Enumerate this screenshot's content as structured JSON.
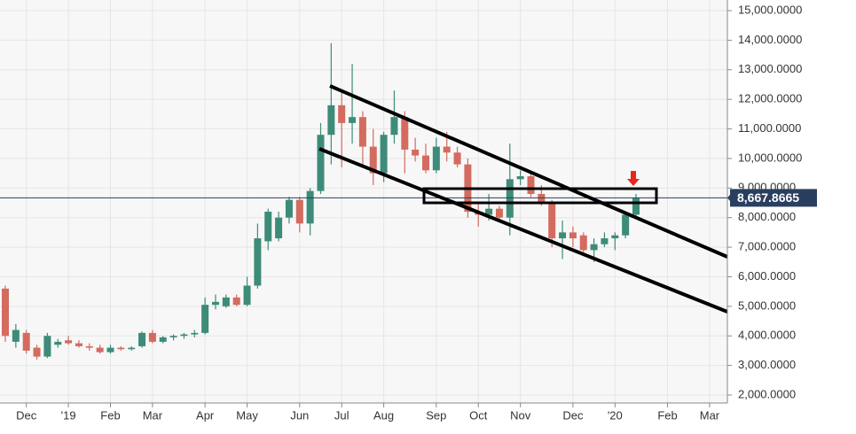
{
  "chart_data": {
    "type": "candlestick",
    "categories": [
      null,
      null,
      "Dec",
      null,
      null,
      null,
      "'19",
      null,
      null,
      null,
      "Feb",
      null,
      null,
      null,
      "Mar",
      null,
      null,
      null,
      null,
      "Apr",
      null,
      null,
      null,
      "May",
      null,
      null,
      null,
      null,
      "Jun",
      null,
      null,
      null,
      "Jul",
      null,
      null,
      null,
      "Aug",
      null,
      null,
      null,
      null,
      "Sep",
      null,
      null,
      null,
      "Oct",
      null,
      null,
      null,
      "Nov",
      null,
      null,
      null,
      null,
      "Dec",
      null,
      null,
      null,
      "'20",
      null,
      null,
      null,
      null,
      "Feb",
      null,
      null,
      null,
      "Mar"
    ],
    "open": [
      5600,
      3800,
      4100,
      3600,
      3300,
      3700,
      3850,
      3750,
      3650,
      3600,
      3450,
      3600,
      3550,
      3650,
      4100,
      3800,
      3950,
      4000,
      4050,
      4100,
      5050,
      5000,
      5300,
      5050,
      5700,
      7200,
      7300,
      8000,
      8600,
      7800,
      8900,
      10800,
      11800,
      11200,
      11400,
      10400,
      9500,
      10800,
      11400,
      10300,
      10100,
      9600,
      10400,
      10200,
      9800,
      8200,
      8100,
      8300,
      8000,
      9300,
      9400,
      8800,
      8500,
      7300,
      7500,
      7400,
      6900,
      7100,
      7300,
      7400,
      8100,
      null,
      null,
      null,
      null,
      null,
      null,
      null
    ],
    "high": [
      5700,
      4400,
      4200,
      3700,
      4100,
      3900,
      4000,
      3850,
      3750,
      3700,
      3700,
      3650,
      3650,
      4150,
      4200,
      4000,
      4050,
      4100,
      4200,
      5300,
      5400,
      5400,
      5400,
      6000,
      7800,
      8300,
      8200,
      8700,
      8700,
      9000,
      11200,
      13900,
      12300,
      13200,
      11600,
      11000,
      10900,
      12300,
      11600,
      10700,
      10500,
      10700,
      10900,
      10400,
      10000,
      8500,
      8800,
      8400,
      10500,
      9600,
      9500,
      9100,
      8600,
      7900,
      7700,
      7500,
      7300,
      7500,
      7500,
      8200,
      8800,
      null,
      null,
      null,
      null,
      null,
      null,
      null
    ],
    "low": [
      3800,
      3600,
      3400,
      3200,
      3250,
      3600,
      3700,
      3600,
      3500,
      3400,
      3400,
      3500,
      3500,
      3600,
      3750,
      3750,
      3850,
      3900,
      3950,
      4050,
      4900,
      4950,
      5000,
      5000,
      5600,
      6900,
      7200,
      7800,
      7500,
      7400,
      8800,
      9800,
      9700,
      10500,
      9800,
      9100,
      9200,
      10500,
      9500,
      9900,
      9500,
      9500,
      9900,
      9700,
      8000,
      7700,
      7900,
      7900,
      7400,
      9100,
      8700,
      8400,
      7000,
      6600,
      7000,
      6800,
      6500,
      7000,
      6900,
      7300,
      8000,
      null,
      null,
      null,
      null,
      null,
      null,
      null
    ],
    "close": [
      4000,
      4200,
      3500,
      3300,
      4000,
      3800,
      3750,
      3650,
      3600,
      3450,
      3600,
      3550,
      3600,
      4100,
      3800,
      3950,
      4000,
      4050,
      4100,
      5050,
      5150,
      5300,
      5050,
      5700,
      7300,
      8200,
      8000,
      8600,
      7800,
      8900,
      10800,
      11800,
      11200,
      11400,
      10400,
      9500,
      10800,
      11400,
      10300,
      10100,
      9600,
      10400,
      10200,
      9800,
      8200,
      8100,
      8300,
      8000,
      9300,
      9400,
      8800,
      8500,
      7300,
      7500,
      7300,
      6900,
      7100,
      7300,
      7400,
      8100,
      8667.8665,
      null,
      null,
      null,
      null,
      null,
      null,
      null
    ],
    "up_color": "#3d8b79",
    "down_color": "#d36b5f",
    "last_price": {
      "value": 8667.8665,
      "label": "8,667.8665"
    },
    "ylim": [
      1730,
      15360
    ],
    "yticks": [
      {
        "value": 2000,
        "label": "2,000.0000"
      },
      {
        "value": 3000,
        "label": "3,000.0000"
      },
      {
        "value": 4000,
        "label": "4,000.0000"
      },
      {
        "value": 5000,
        "label": "5,000.0000"
      },
      {
        "value": 6000,
        "label": "6,000.0000"
      },
      {
        "value": 7000,
        "label": "7,000.0000"
      },
      {
        "value": 8000,
        "label": "8,000.0000"
      },
      {
        "value": 9000,
        "label": "9,000.0000"
      },
      {
        "value": 10000,
        "label": "10,000.0000"
      },
      {
        "value": 11000,
        "label": "11,000.0000"
      },
      {
        "value": 12000,
        "label": "12,000.0000"
      },
      {
        "value": 13000,
        "label": "13,000.0000"
      },
      {
        "value": 14000,
        "label": "14,000.0000"
      },
      {
        "value": 15000,
        "label": "15,000.0000"
      }
    ],
    "grid": true
  }
}
